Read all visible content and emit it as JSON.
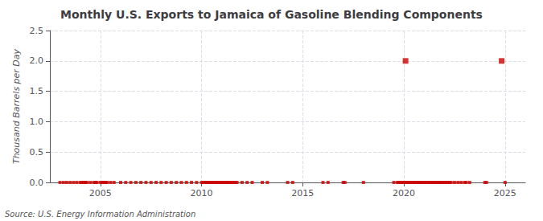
{
  "chart_data": {
    "type": "scatter",
    "title": "Monthly U.S. Exports to Jamaica of Gasoline Blending Components",
    "ylabel": "Thousand Barrels per Day",
    "annotation": "Source: U.S. Energy Information Administration",
    "xlim": [
      2002.5,
      2026.0
    ],
    "ylim": [
      0.0,
      2.5
    ],
    "xticks": [
      2005,
      2010,
      2015,
      2020,
      2025
    ],
    "yticks": [
      {
        "value": 0.0,
        "label": "0.0"
      },
      0.5,
      {
        "value": 1.0,
        "label": "1.0"
      },
      1.5,
      {
        "value": 2.0,
        "label": "2.0"
      },
      2.5
    ],
    "grid": true,
    "marker": "square",
    "series": [
      {
        "color": "#cc0000",
        "x": [
          2003.0,
          2003.17,
          2003.33,
          2003.5,
          2003.67,
          2003.83,
          2004.0,
          2004.08,
          2004.17,
          2004.25,
          2004.33,
          2004.5,
          2004.67,
          2004.75,
          2004.83,
          2005.0,
          2005.08,
          2005.17,
          2005.25,
          2005.33,
          2005.5,
          2005.67,
          2006.0,
          2006.25,
          2006.5,
          2006.75,
          2007.0,
          2007.25,
          2007.5,
          2007.75,
          2008.0,
          2008.25,
          2008.5,
          2008.75,
          2009.0,
          2009.25,
          2009.5,
          2009.75,
          2010.0,
          2010.08,
          2010.17,
          2010.25,
          2010.33,
          2010.42,
          2010.5,
          2010.58,
          2010.67,
          2010.75,
          2010.83,
          2010.92,
          2011.0,
          2011.08,
          2011.17,
          2011.25,
          2011.33,
          2011.42,
          2011.5,
          2011.58,
          2011.67,
          2011.75,
          2012.0,
          2012.25,
          2012.5,
          2013.0,
          2013.25,
          2014.25,
          2014.5,
          2016.0,
          2016.25,
          2017.0,
          2017.08,
          2018.0,
          2019.5,
          2019.67,
          2019.75,
          2019.83,
          2019.92,
          2020.0,
          2020.08,
          2020.17,
          2020.25,
          2020.33,
          2020.42,
          2020.5,
          2020.58,
          2020.67,
          2020.75,
          2020.83,
          2020.92,
          2021.0,
          2021.08,
          2021.17,
          2021.25,
          2021.33,
          2021.42,
          2021.5,
          2021.58,
          2021.67,
          2021.75,
          2021.83,
          2021.92,
          2022.0,
          2022.08,
          2022.17,
          2022.25,
          2022.33,
          2022.5,
          2022.67,
          2022.83,
          2023.0,
          2023.08,
          2023.25,
          2024.0,
          2024.08,
          2025.0
        ],
        "values": [
          0.0,
          0.0,
          0.0,
          0.0,
          0.0,
          0.0,
          0.0,
          0.0,
          0.0,
          0.0,
          0.0,
          0.0,
          0.0,
          0.0,
          0.0,
          0.0,
          0.0,
          0.0,
          0.0,
          0.0,
          0.0,
          0.0,
          0.0,
          0.0,
          0.0,
          0.0,
          0.0,
          0.0,
          0.0,
          0.0,
          0.0,
          0.0,
          0.0,
          0.0,
          0.0,
          0.0,
          0.0,
          0.0,
          0.0,
          0.0,
          0.0,
          0.0,
          0.0,
          0.0,
          0.0,
          0.0,
          0.0,
          0.0,
          0.0,
          0.0,
          0.0,
          0.0,
          0.0,
          0.0,
          0.0,
          0.0,
          0.0,
          0.0,
          0.0,
          0.0,
          0.0,
          0.0,
          0.0,
          0.0,
          0.0,
          0.0,
          0.0,
          0.0,
          0.0,
          0.0,
          0.0,
          0.0,
          0.0,
          0.0,
          0.0,
          0.0,
          0.0,
          0.0,
          0.0,
          0.0,
          0.0,
          0.0,
          0.0,
          0.0,
          0.0,
          0.0,
          0.0,
          0.0,
          0.0,
          0.0,
          0.0,
          0.0,
          0.0,
          0.0,
          0.0,
          0.0,
          0.0,
          0.0,
          0.0,
          0.0,
          0.0,
          0.0,
          0.0,
          0.0,
          0.0,
          0.0,
          0.0,
          0.0,
          0.0,
          0.0,
          0.0,
          0.0,
          0.0,
          0.0,
          0.0
        ]
      },
      {
        "color": "#cc0000",
        "x": [
          2020.08,
          2024.83
        ],
        "values": [
          2.0,
          2.0
        ]
      }
    ]
  }
}
